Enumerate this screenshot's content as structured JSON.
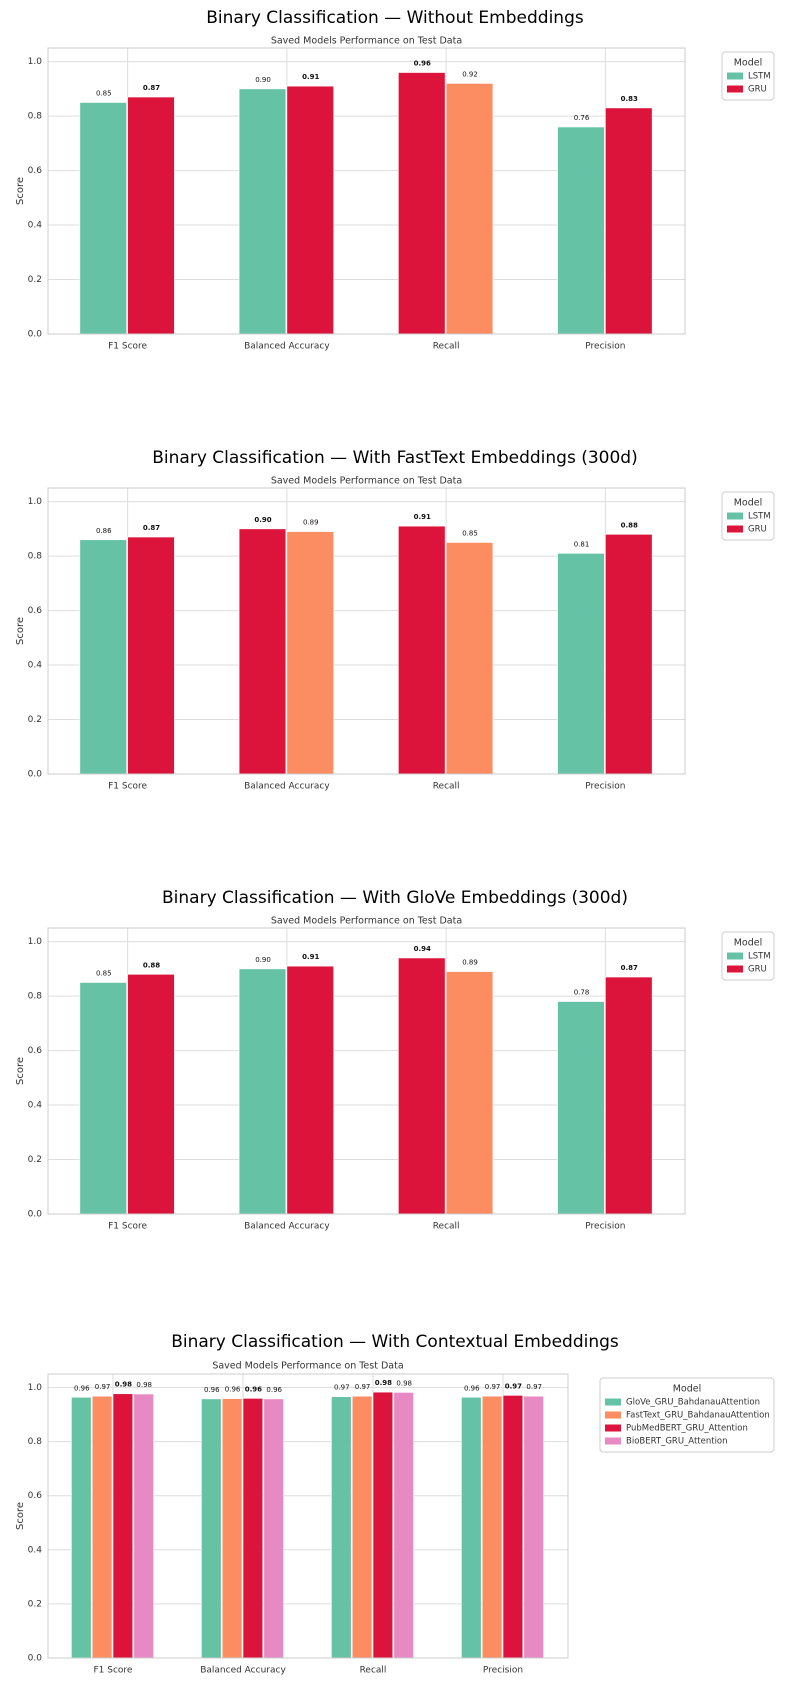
{
  "colors": {
    "teal": "#66c2a5",
    "orange": "#fc8d62",
    "crimson": "#dc143c",
    "pink": "#e78ac3",
    "grid": "#dddddd",
    "frame": "#cccccc"
  },
  "chart_data": [
    {
      "type": "bar",
      "title": "Binary Classification — Without Embeddings",
      "subtitle": "Saved Models Performance on Test Data",
      "xlabel": "",
      "ylabel": "Score",
      "ylim": [
        0,
        1.05
      ],
      "yticks": [
        "0.0",
        "0.2",
        "0.4",
        "0.6",
        "0.8",
        "1.0"
      ],
      "grid": true,
      "legend_title": "Model",
      "legend_position": "outside-top-right",
      "legend": [
        {
          "label": "LSTM",
          "color": "#66c2a5"
        },
        {
          "label": "GRU",
          "color": "#dc143c"
        }
      ],
      "categories": [
        "F1 Score",
        "Balanced Accuracy",
        "Recall",
        "Precision"
      ],
      "series": [
        {
          "name": "LSTM",
          "values": [
            0.85,
            0.9,
            0.96,
            0.76
          ],
          "colors": [
            "#66c2a5",
            "#66c2a5",
            "#dc143c",
            "#66c2a5"
          ]
        },
        {
          "name": "GRU",
          "values": [
            0.87,
            0.91,
            0.92,
            0.83
          ],
          "colors": [
            "#dc143c",
            "#dc143c",
            "#fc8d62",
            "#dc143c"
          ]
        }
      ],
      "labels": [
        [
          "0.85",
          "0.90",
          "0.96",
          "0.76"
        ],
        [
          "0.87",
          "0.91",
          "0.92",
          "0.83"
        ]
      ],
      "bold": [
        [
          false,
          false,
          true,
          false
        ],
        [
          true,
          true,
          false,
          true
        ]
      ]
    },
    {
      "type": "bar",
      "title": "Binary Classification — With FastText Embeddings (300d)",
      "subtitle": "Saved Models Performance on Test Data",
      "xlabel": "",
      "ylabel": "Score",
      "ylim": [
        0,
        1.05
      ],
      "yticks": [
        "0.0",
        "0.2",
        "0.4",
        "0.6",
        "0.8",
        "1.0"
      ],
      "grid": true,
      "legend_title": "Model",
      "legend_position": "outside-top-right",
      "legend": [
        {
          "label": "LSTM",
          "color": "#66c2a5"
        },
        {
          "label": "GRU",
          "color": "#dc143c"
        }
      ],
      "categories": [
        "F1 Score",
        "Balanced Accuracy",
        "Recall",
        "Precision"
      ],
      "series": [
        {
          "name": "LSTM",
          "values": [
            0.86,
            0.9,
            0.91,
            0.81
          ],
          "colors": [
            "#66c2a5",
            "#dc143c",
            "#dc143c",
            "#66c2a5"
          ]
        },
        {
          "name": "GRU",
          "values": [
            0.87,
            0.89,
            0.85,
            0.88
          ],
          "colors": [
            "#dc143c",
            "#fc8d62",
            "#fc8d62",
            "#dc143c"
          ]
        }
      ],
      "labels": [
        [
          "0.86",
          "0.90",
          "0.91",
          "0.81"
        ],
        [
          "0.87",
          "0.89",
          "0.85",
          "0.88"
        ]
      ],
      "bold": [
        [
          false,
          true,
          true,
          false
        ],
        [
          true,
          false,
          false,
          true
        ]
      ]
    },
    {
      "type": "bar",
      "title": "Binary Classification — With GloVe Embeddings (300d)",
      "subtitle": "Saved Models Performance on Test Data",
      "xlabel": "",
      "ylabel": "Score",
      "ylim": [
        0,
        1.05
      ],
      "yticks": [
        "0.0",
        "0.2",
        "0.4",
        "0.6",
        "0.8",
        "1.0"
      ],
      "grid": true,
      "legend_title": "Model",
      "legend_position": "outside-top-right",
      "legend": [
        {
          "label": "LSTM",
          "color": "#66c2a5"
        },
        {
          "label": "GRU",
          "color": "#dc143c"
        }
      ],
      "categories": [
        "F1 Score",
        "Balanced Accuracy",
        "Recall",
        "Precision"
      ],
      "series": [
        {
          "name": "LSTM",
          "values": [
            0.85,
            0.9,
            0.94,
            0.78
          ],
          "colors": [
            "#66c2a5",
            "#66c2a5",
            "#dc143c",
            "#66c2a5"
          ]
        },
        {
          "name": "GRU",
          "values": [
            0.88,
            0.91,
            0.89,
            0.87
          ],
          "colors": [
            "#dc143c",
            "#dc143c",
            "#fc8d62",
            "#dc143c"
          ]
        }
      ],
      "labels": [
        [
          "0.85",
          "0.90",
          "0.94",
          "0.78"
        ],
        [
          "0.88",
          "0.91",
          "0.89",
          "0.87"
        ]
      ],
      "bold": [
        [
          false,
          false,
          true,
          false
        ],
        [
          true,
          true,
          false,
          true
        ]
      ]
    },
    {
      "type": "bar",
      "title": "Binary Classification — With Contextual Embeddings",
      "subtitle": "Saved Models Performance on Test Data",
      "xlabel": "",
      "ylabel": "Score",
      "ylim": [
        0,
        1.05
      ],
      "yticks": [
        "0.0",
        "0.2",
        "0.4",
        "0.6",
        "0.8",
        "1.0"
      ],
      "grid": true,
      "legend_title": "Model",
      "legend_position": "outside-top-right",
      "legend": [
        {
          "label": "GloVe_GRU_BahdanauAttention",
          "color": "#66c2a5"
        },
        {
          "label": "FastText_GRU_BahdanauAttention",
          "color": "#fc8d62"
        },
        {
          "label": "PubMedBERT_GRU_Attention",
          "color": "#dc143c"
        },
        {
          "label": "BioBERT_GRU_Attention",
          "color": "#e78ac3"
        }
      ],
      "categories": [
        "F1 Score",
        "Balanced Accuracy",
        "Recall",
        "Precision"
      ],
      "series": [
        {
          "name": "GloVe_GRU_BahdanauAttention",
          "values": [
            0.964,
            0.958,
            0.966,
            0.964
          ],
          "colors": [
            "#66c2a5",
            "#66c2a5",
            "#66c2a5",
            "#66c2a5"
          ]
        },
        {
          "name": "FastText_GRU_BahdanauAttention",
          "values": [
            0.968,
            0.959,
            0.968,
            0.968
          ],
          "colors": [
            "#fc8d62",
            "#fc8d62",
            "#fc8d62",
            "#fc8d62"
          ]
        },
        {
          "name": "PubMedBERT_GRU_Attention",
          "values": [
            0.977,
            0.96,
            0.983,
            0.971
          ],
          "colors": [
            "#dc143c",
            "#dc143c",
            "#dc143c",
            "#dc143c"
          ]
        },
        {
          "name": "BioBERT_GRU_Attention",
          "values": [
            0.976,
            0.958,
            0.982,
            0.968
          ],
          "colors": [
            "#e78ac3",
            "#e78ac3",
            "#e78ac3",
            "#e78ac3"
          ]
        }
      ],
      "labels": [
        [
          "0.96",
          "0.96",
          "0.97",
          "0.96"
        ],
        [
          "0.97",
          "0.96",
          "0.97",
          "0.97"
        ],
        [
          "0.98",
          "0.96",
          "0.98",
          "0.97"
        ],
        [
          "0.98",
          "0.96",
          "0.98",
          "0.97"
        ]
      ],
      "bold": [
        [
          false,
          false,
          false,
          false
        ],
        [
          false,
          false,
          false,
          false
        ],
        [
          true,
          true,
          true,
          true
        ],
        [
          false,
          false,
          false,
          false
        ]
      ]
    }
  ]
}
